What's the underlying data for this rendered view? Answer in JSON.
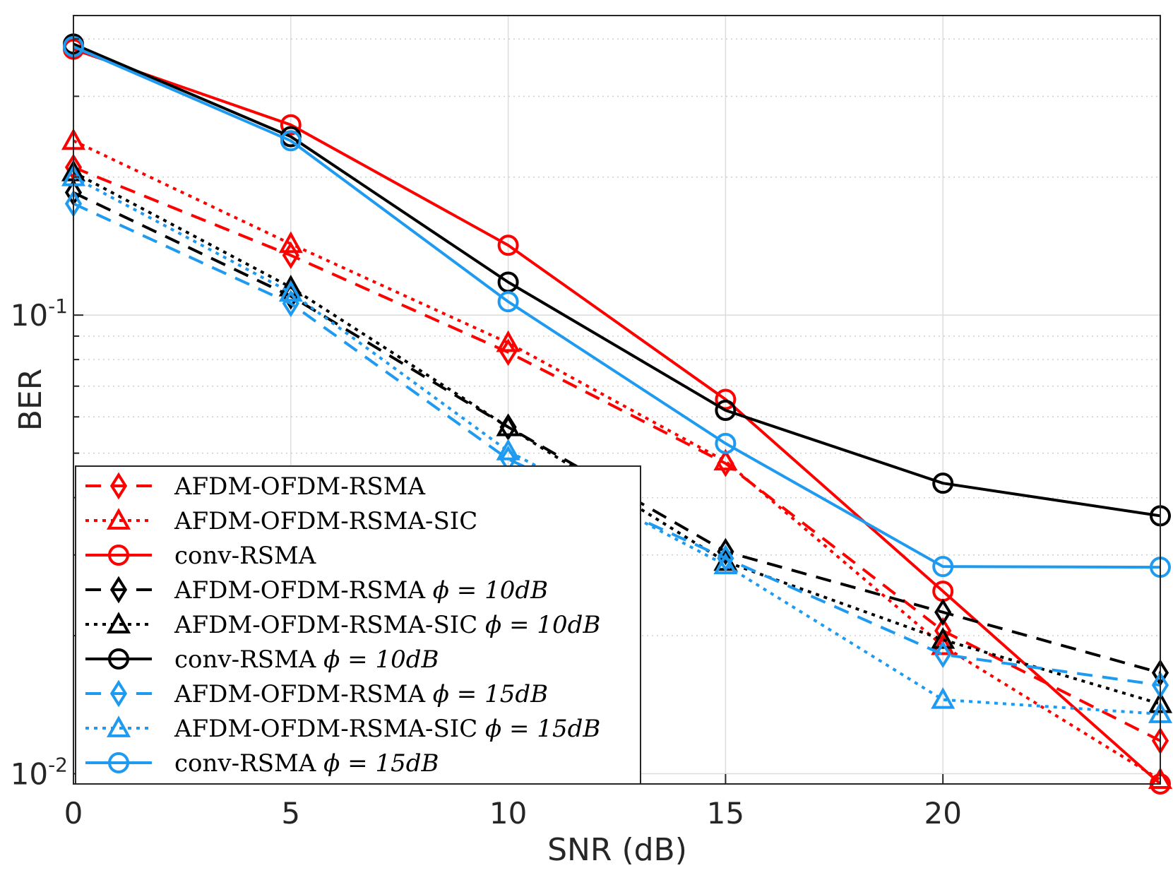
{
  "chart_data": {
    "type": "line",
    "title": "",
    "xlabel": "SNR (dB)",
    "ylabel": "BER",
    "yscale": "log",
    "xlim": [
      0,
      25
    ],
    "ylim": [
      0.0095,
      0.45
    ],
    "xticks": [
      {
        "value": 0,
        "label": "0"
      },
      {
        "value": 5,
        "label": "5"
      },
      {
        "value": 10,
        "label": "10"
      },
      {
        "value": 15,
        "label": "15"
      },
      {
        "value": 20,
        "label": "20"
      }
    ],
    "yticks": [
      {
        "value": 0.1,
        "base": "10",
        "exp": "-1"
      },
      {
        "value": 0.01,
        "base": "10",
        "exp": "-2"
      }
    ],
    "grid": true,
    "legend_position": "bottom-left",
    "x": [
      0,
      5,
      10,
      15,
      20,
      25
    ],
    "series": [
      {
        "name": "AFDM-OFDM-RSMA",
        "param": "",
        "color": "#ff0000",
        "dash": "dashed",
        "marker": "diamond",
        "values": [
          0.21,
          0.135,
          0.083,
          0.0475,
          0.0205,
          0.0118
        ]
      },
      {
        "name": "AFDM-OFDM-RSMA-SIC",
        "param": "",
        "color": "#ff0000",
        "dash": "dotted",
        "marker": "triangle",
        "values": [
          0.24,
          0.143,
          0.087,
          0.048,
          0.019,
          0.0097
        ]
      },
      {
        "name": "conv-RSMA",
        "param": "",
        "color": "#ff0000",
        "dash": "solid",
        "marker": "circle",
        "values": [
          0.38,
          0.26,
          0.142,
          0.0655,
          0.025,
          0.0095
        ]
      },
      {
        "name": "AFDM-OFDM-RSMA",
        "param": "ϕ = 10dB",
        "color": "#000000",
        "dash": "dashed",
        "marker": "diamond",
        "values": [
          0.185,
          0.11,
          0.057,
          0.0305,
          0.0225,
          0.0166
        ]
      },
      {
        "name": "AFDM-OFDM-RSMA-SIC",
        "param": "ϕ = 10dB",
        "color": "#000000",
        "dash": "dotted",
        "marker": "triangle",
        "values": [
          0.205,
          0.115,
          0.057,
          0.029,
          0.0196,
          0.0142
        ]
      },
      {
        "name": "conv-RSMA",
        "param": "ϕ = 10dB",
        "color": "#000000",
        "dash": "solid",
        "marker": "circle",
        "values": [
          0.39,
          0.245,
          0.118,
          0.062,
          0.043,
          0.0365
        ]
      },
      {
        "name": "AFDM-OFDM-RSMA",
        "param": "ϕ = 15dB",
        "color": "#1e9bf0",
        "dash": "dashed",
        "marker": "diamond",
        "values": [
          0.175,
          0.106,
          0.0485,
          0.0295,
          0.0182,
          0.0156
        ]
      },
      {
        "name": "AFDM-OFDM-RSMA-SIC",
        "param": "ϕ = 15dB",
        "color": "#1e9bf0",
        "dash": "dotted",
        "marker": "triangle",
        "values": [
          0.2,
          0.112,
          0.0505,
          0.0285,
          0.0145,
          0.0135
        ]
      },
      {
        "name": "conv-RSMA",
        "param": "ϕ = 15dB",
        "color": "#1e9bf0",
        "dash": "solid",
        "marker": "circle",
        "values": [
          0.385,
          0.24,
          0.107,
          0.0525,
          0.0283,
          0.0282
        ]
      }
    ]
  }
}
